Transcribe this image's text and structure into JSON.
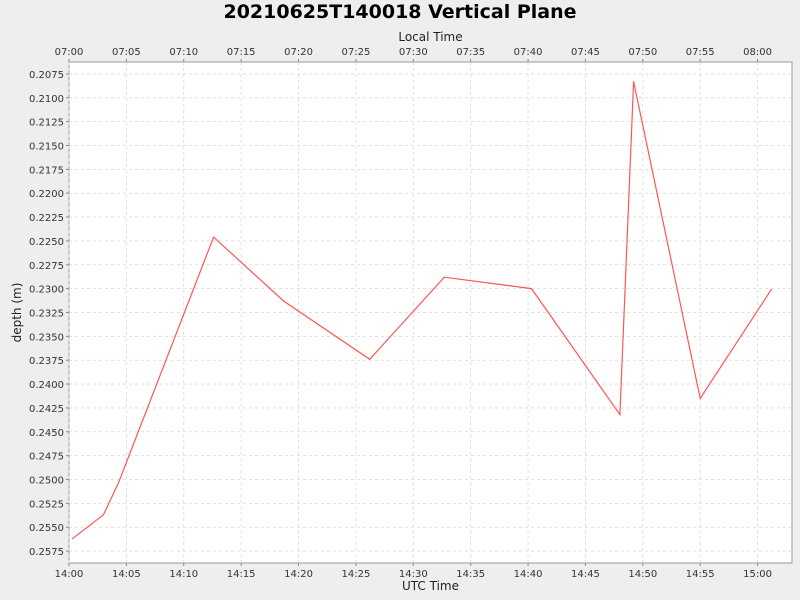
{
  "chart_data": {
    "type": "line",
    "title": "20210625T140018 Vertical Plane",
    "top_axis_label": "Local Time",
    "xlabel": "UTC Time",
    "ylabel": "depth (m)",
    "y_axis_inverted": true,
    "ylim": [
      0.25875,
      0.20625
    ],
    "xlim": [
      "14:00:00",
      "15:03:00"
    ],
    "grid": true,
    "line_color": "#ff5555",
    "x_ticks_utc": [
      "14:00",
      "14:05",
      "14:10",
      "14:15",
      "14:20",
      "14:25",
      "14:30",
      "14:35",
      "14:40",
      "14:45",
      "14:50",
      "14:55",
      "15:00"
    ],
    "x_ticks_local": [
      "07:00",
      "07:05",
      "07:10",
      "07:15",
      "07:20",
      "07:25",
      "07:30",
      "07:35",
      "07:40",
      "07:45",
      "07:50",
      "07:55",
      "08:00"
    ],
    "y_ticks": [
      "0.2075",
      "0.2100",
      "0.2125",
      "0.2150",
      "0.2175",
      "0.2200",
      "0.2225",
      "0.2250",
      "0.2275",
      "0.2300",
      "0.2325",
      "0.2350",
      "0.2375",
      "0.2400",
      "0.2425",
      "0.2450",
      "0.2475",
      "0.2500",
      "0.2525",
      "0.2550",
      "0.2575"
    ],
    "series": [
      {
        "x": [
          "14:00:18",
          "14:03:00",
          "14:04:18",
          "14:12:36",
          "14:18:42",
          "14:26:12",
          "14:32:42",
          "14:40:18",
          "14:48:00",
          "14:49:12",
          "14:55:00",
          "15:01:12"
        ],
        "y": [
          0.2562,
          0.2537,
          0.2504,
          0.2246,
          0.2313,
          0.2374,
          0.2288,
          0.23,
          0.2432,
          0.2083,
          0.2415,
          0.2301
        ]
      }
    ]
  }
}
